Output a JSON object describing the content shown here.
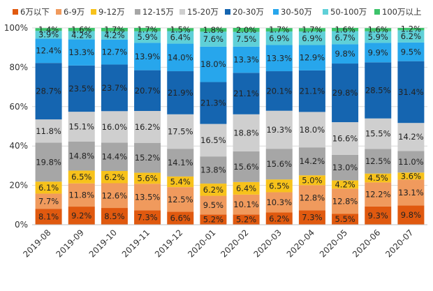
{
  "chart_data": {
    "type": "bar",
    "stacked": true,
    "title": "",
    "xlabel": "",
    "ylabel": "",
    "ylim": [
      0,
      100
    ],
    "yticks": [
      "0%",
      "20%",
      "40%",
      "60%",
      "80%",
      "100%"
    ],
    "legend_position": "top",
    "categories": [
      "2019-08",
      "2019-09",
      "2019-10",
      "2019-11",
      "2019-12",
      "2020-01",
      "2020-02",
      "2020-03",
      "2020-04",
      "2020-05",
      "2020-06",
      "2020-07"
    ],
    "series": [
      {
        "name": "6万以下",
        "color": "#e0590f",
        "values": [
          8.1,
          9.2,
          8.5,
          7.3,
          6.6,
          5.2,
          5.2,
          6.2,
          7.3,
          5.5,
          9.3,
          9.8
        ],
        "labels": [
          "8.1%",
          "9.2%",
          "8.5%",
          "7.3%",
          "6.6%",
          "5.2%",
          "5.2%",
          "6.2%",
          "7.3%",
          "5.5%",
          "9.3%",
          "9.8%"
        ]
      },
      {
        "name": "6-9万",
        "color": "#f09a5d",
        "values": [
          7.7,
          11.8,
          12.6,
          13.5,
          12.5,
          9.5,
          10.1,
          10.3,
          12.8,
          12.8,
          12.2,
          13.1
        ],
        "labels": [
          "7.7%",
          "11.8%",
          "12.6%",
          "13.5%",
          "12.5%",
          "9.5%",
          "10.1%",
          "10.3%",
          "12.8%",
          "12.8%",
          "12.2%",
          "13.1%"
        ]
      },
      {
        "name": "9-12万",
        "color": "#f7c21b",
        "values": [
          6.1,
          6.5,
          6.2,
          5.6,
          5.4,
          6.2,
          6.4,
          6.5,
          5.0,
          4.2,
          4.5,
          3.6
        ],
        "labels": [
          "6.1%",
          "6.5%",
          "6.2%",
          "5.6%",
          "5.4%",
          "6.2%",
          "6.4%",
          "6.5%",
          "5.0%",
          "4.2%",
          "4.5%",
          "3.6%"
        ]
      },
      {
        "name": "12-15万",
        "color": "#a6a6a6",
        "values": [
          19.8,
          14.8,
          14.4,
          15.2,
          14.1,
          13.8,
          15.6,
          15.6,
          14.2,
          13.0,
          12.5,
          11.0
        ],
        "labels": [
          "19.8%",
          "14.8%",
          "14.4%",
          "15.2%",
          "14.1%",
          "13.8%",
          "15.6%",
          "15.6%",
          "14.2%",
          "13.0%",
          "12.5%",
          "11.0%"
        ]
      },
      {
        "name": "15-20万",
        "color": "#cfcfcf",
        "values": [
          11.8,
          15.1,
          16.0,
          16.2,
          17.5,
          16.5,
          18.8,
          19.3,
          18.0,
          16.6,
          15.5,
          14.2
        ],
        "labels": [
          "11.8%",
          "15.1%",
          "16.0%",
          "16.2%",
          "17.5%",
          "16.5%",
          "18.8%",
          "19.3%",
          "18.0%",
          "16.6%",
          "15.5%",
          "14.2%"
        ]
      },
      {
        "name": "20-30万",
        "color": "#1565b0",
        "values": [
          28.7,
          23.5,
          23.7,
          20.7,
          21.9,
          21.3,
          21.1,
          20.1,
          21.1,
          29.8,
          28.5,
          31.4
        ],
        "labels": [
          "28.7%",
          "23.5%",
          "23.7%",
          "20.7%",
          "21.9%",
          "21.3%",
          "21.1%",
          "20.1%",
          "21.1%",
          "29.8%",
          "28.5%",
          "31.4%"
        ]
      },
      {
        "name": "30-50万",
        "color": "#27a6ec",
        "values": [
          12.4,
          13.3,
          12.7,
          13.9,
          14.0,
          18.0,
          13.3,
          13.3,
          12.9,
          9.8,
          9.9,
          9.5
        ],
        "labels": [
          "12.4%",
          "13.3%",
          "12.7%",
          "13.9%",
          "14.0%",
          "18.0%",
          "13.3%",
          "13.3%",
          "12.9%",
          "9.8%",
          "9.9%",
          "9.5%"
        ]
      },
      {
        "name": "50-100万",
        "color": "#5fd0d8",
        "values": [
          3.9,
          4.2,
          4.2,
          5.9,
          6.4,
          7.6,
          7.5,
          6.9,
          6.9,
          6.7,
          5.9,
          6.2
        ],
        "labels": [
          "3.9%",
          "4.2%",
          "4.2%",
          "5.9%",
          "6.4%",
          "7.6%",
          "7.5%",
          "6.9%",
          "6.9%",
          "6.7%",
          "5.9%",
          "6.2%"
        ]
      },
      {
        "name": "100万以上",
        "color": "#3cc36a",
        "values": [
          1.4,
          1.6,
          1.7,
          1.7,
          1.5,
          1.8,
          2.0,
          1.7,
          1.7,
          1.6,
          1.6,
          1.2
        ],
        "labels": [
          "1.4%",
          "1.6%",
          "1.7%",
          "1.7%",
          "1.5%",
          "1.8%",
          "2.0%",
          "1.7%",
          "1.7%",
          "1.6%",
          "1.6%",
          "1.2%"
        ]
      }
    ]
  }
}
